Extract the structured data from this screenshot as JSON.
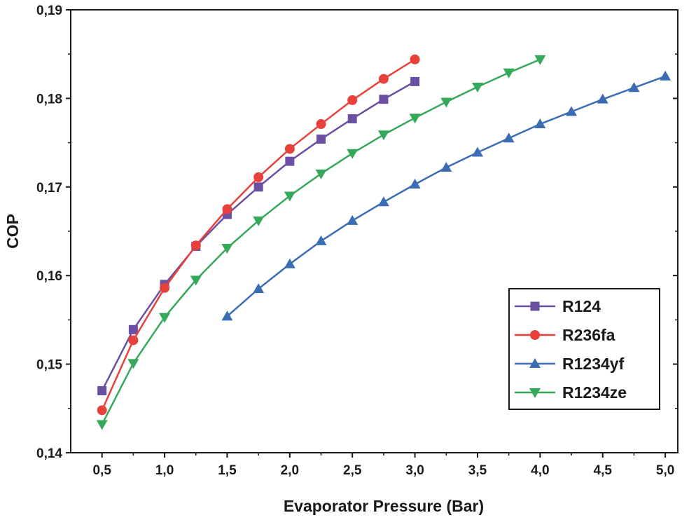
{
  "chart_data": {
    "type": "line",
    "xlabel": "Evaporator Pressure (Bar)",
    "ylabel": "COP",
    "xlim": [
      0.25,
      5.1
    ],
    "ylim": [
      0.14,
      0.19
    ],
    "x_ticks": [
      0.5,
      1.0,
      1.5,
      2.0,
      2.5,
      3.0,
      3.5,
      4.0,
      4.5,
      5.0
    ],
    "x_tick_labels": [
      "0,5",
      "1,0",
      "1,5",
      "2,0",
      "2,5",
      "3,0",
      "3,5",
      "4,0",
      "4,5",
      "5,0"
    ],
    "y_ticks": [
      0.14,
      0.15,
      0.16,
      0.17,
      0.18,
      0.19
    ],
    "y_tick_labels": [
      "0,14",
      "0,15",
      "0,16",
      "0,17",
      "0,18",
      "0,19"
    ],
    "legend_position": "bottom-right",
    "grid": false,
    "series": [
      {
        "name": "R124",
        "color": "#6a4fa3",
        "marker": "square",
        "x": [
          0.5,
          0.75,
          1.0,
          1.25,
          1.5,
          1.75,
          2.0,
          2.25,
          2.5,
          2.75,
          3.0
        ],
        "y": [
          0.147,
          0.1539,
          0.159,
          0.1633,
          0.1669,
          0.17,
          0.1729,
          0.1754,
          0.1777,
          0.1799,
          0.1819
        ]
      },
      {
        "name": "R236fa",
        "color": "#e8403a",
        "marker": "circle",
        "x": [
          0.5,
          0.75,
          1.0,
          1.25,
          1.5,
          1.75,
          2.0,
          2.25,
          2.5,
          2.75,
          3.0
        ],
        "y": [
          0.1448,
          0.1527,
          0.1586,
          0.1634,
          0.1675,
          0.1711,
          0.1743,
          0.1771,
          0.1798,
          0.1822,
          0.1844
        ]
      },
      {
        "name": "R1234yf",
        "color": "#3b6db5",
        "marker": "triangle-up",
        "x": [
          1.5,
          1.75,
          2.0,
          2.25,
          2.5,
          2.75,
          3.0,
          3.25,
          3.5,
          3.75,
          4.0,
          4.25,
          4.5,
          4.75,
          5.0
        ],
        "y": [
          0.1554,
          0.1585,
          0.1613,
          0.1639,
          0.1662,
          0.1683,
          0.1703,
          0.1722,
          0.1739,
          0.1755,
          0.1771,
          0.1785,
          0.1799,
          0.1812,
          0.1825
        ]
      },
      {
        "name": "R1234ze",
        "color": "#35a85a",
        "marker": "triangle-down",
        "x": [
          0.5,
          0.75,
          1.0,
          1.25,
          1.5,
          1.75,
          2.0,
          2.25,
          2.5,
          2.75,
          3.0,
          3.25,
          3.5,
          3.75,
          4.0
        ],
        "y": [
          0.1432,
          0.1501,
          0.1553,
          0.1595,
          0.1631,
          0.1662,
          0.169,
          0.1715,
          0.1738,
          0.1759,
          0.1778,
          0.1796,
          0.1813,
          0.1829,
          0.1844
        ]
      }
    ]
  }
}
